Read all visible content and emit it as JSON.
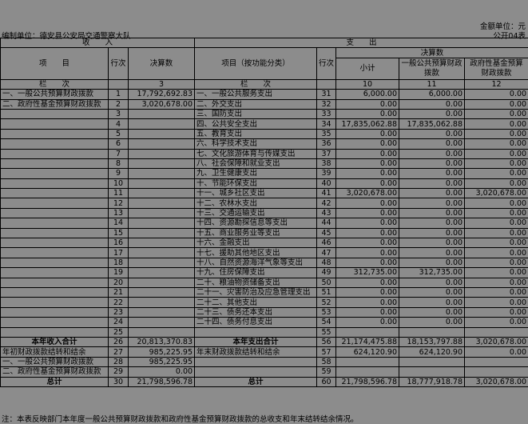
{
  "header": {
    "unit": "金额单位：元",
    "form_no": "公开04表",
    "org": "编制单位：德安县公安局交通警察大队"
  },
  "table": {
    "head": {
      "income": "收　　入",
      "expense": "支　　出",
      "item": "项　　目",
      "line_no": "行次",
      "amount": "决算数",
      "func_item": "项目（按功能分类）",
      "line_no2": "行次",
      "amount2": "决算数",
      "subtotal": "小计",
      "general": "一般公共预算财政拨款",
      "fund": "政府性基金预算财政拨款",
      "col_label": "栏　　次",
      "col3": "3",
      "col_label2": "栏　　次",
      "col10": "10",
      "col11": "11",
      "col12": "12"
    },
    "rows": [
      [
        "一、一般公共预算财政拨款",
        "1",
        "17,792,692.83",
        "一、一般公共服务支出",
        "31",
        "6,000.00",
        "6,000.00",
        "0.00"
      ],
      [
        "二、政府性基金预算财政拨款",
        "2",
        "3,020,678.00",
        "二、外交支出",
        "32",
        "0.00",
        "0.00",
        "0.00"
      ],
      [
        null,
        "3",
        null,
        "三、国防支出",
        "33",
        "0.00",
        "0.00",
        "0.00"
      ],
      [
        null,
        "4",
        null,
        "四、公共安全支出",
        "34",
        "17,835,062.88",
        "17,835,062.88",
        "0.00"
      ],
      [
        null,
        "5",
        null,
        "五、教育支出",
        "35",
        "0.00",
        "0.00",
        "0.00"
      ],
      [
        null,
        "6",
        null,
        "六、科学技术支出",
        "36",
        "0.00",
        "0.00",
        "0.00"
      ],
      [
        null,
        "7",
        null,
        "七、文化旅游体育与传媒支出",
        "37",
        "0.00",
        "0.00",
        "0.00"
      ],
      [
        null,
        "8",
        null,
        "八、社会保障和就业支出",
        "38",
        "0.00",
        "0.00",
        "0.00"
      ],
      [
        null,
        "9",
        null,
        "九、卫生健康支出",
        "39",
        "0.00",
        "0.00",
        "0.00"
      ],
      [
        null,
        "10",
        null,
        "十、节能环保支出",
        "40",
        "0.00",
        "0.00",
        "0.00"
      ],
      [
        null,
        "11",
        null,
        "十一、城乡社区支出",
        "41",
        "3,020,678.00",
        "0.00",
        "3,020,678.00"
      ],
      [
        null,
        "12",
        null,
        "十二、农林水支出",
        "42",
        "0.00",
        "0.00",
        "0.00"
      ],
      [
        null,
        "13",
        null,
        "十三、交通运输支出",
        "43",
        "0.00",
        "0.00",
        "0.00"
      ],
      [
        null,
        "14",
        null,
        "十四、资源勘探信息等支出",
        "44",
        "0.00",
        "0.00",
        "0.00"
      ],
      [
        null,
        "15",
        null,
        "十五、商业服务业等支出",
        "45",
        "0.00",
        "0.00",
        "0.00"
      ],
      [
        null,
        "16",
        null,
        "十六、金融支出",
        "46",
        "0.00",
        "0.00",
        "0.00"
      ],
      [
        null,
        "17",
        null,
        "十七、援助其他地区支出",
        "47",
        "0.00",
        "0.00",
        "0.00"
      ],
      [
        null,
        "18",
        null,
        "十八、自然资源海洋气象等支出",
        "48",
        "0.00",
        "0.00",
        "0.00"
      ],
      [
        null,
        "19",
        null,
        "十九、住房保障支出",
        "49",
        "312,735.00",
        "312,735.00",
        "0.00"
      ],
      [
        null,
        "20",
        null,
        "二十、粮油物资储备支出",
        "50",
        "0.00",
        "0.00",
        "0.00"
      ],
      [
        null,
        "21",
        null,
        "二十一、灾害防治及应急管理支出",
        "51",
        "0.00",
        "0.00",
        "0.00"
      ],
      [
        null,
        "22",
        null,
        "二十二、其他支出",
        "52",
        "0.00",
        "0.00",
        "0.00"
      ],
      [
        null,
        "23",
        null,
        "二十三、债务还本支出",
        "53",
        "0.00",
        "0.00",
        "0.00"
      ],
      [
        null,
        "24",
        null,
        "二十四、债务付息支出",
        "54",
        "0.00",
        "0.00",
        "0.00"
      ],
      [
        null,
        "25",
        null,
        null,
        "55",
        null,
        null,
        null
      ],
      [
        "本年收入合计",
        "26",
        "20,813,370.83",
        "本年支出合计",
        "56",
        "21,174,475.88",
        "18,153,797.88",
        "3,020,678.00"
      ],
      [
        "年初财政拨款结转和结余",
        "27",
        "985,225.95",
        "年末财政拨款结转和结余",
        "57",
        "624,120.90",
        "624,120.90",
        "0.00"
      ],
      [
        "一、一般公共预算财政拨款",
        "28",
        "985,225.95",
        null,
        "58",
        null,
        null,
        null
      ],
      [
        "二、政府性基金预算财政拨款",
        "29",
        "0.00",
        null,
        "59",
        null,
        null,
        null
      ],
      [
        "总计",
        "30",
        "21,798,596.78",
        "总计",
        "60",
        "21,798,596.78",
        "18,777,918.78",
        "3,020,678.00"
      ]
    ]
  },
  "footnote": "注：本表反映部门本年度一般公共预算财政拨款和政府性基金预算财政拨款的总收支和年末结转结余情况。"
}
